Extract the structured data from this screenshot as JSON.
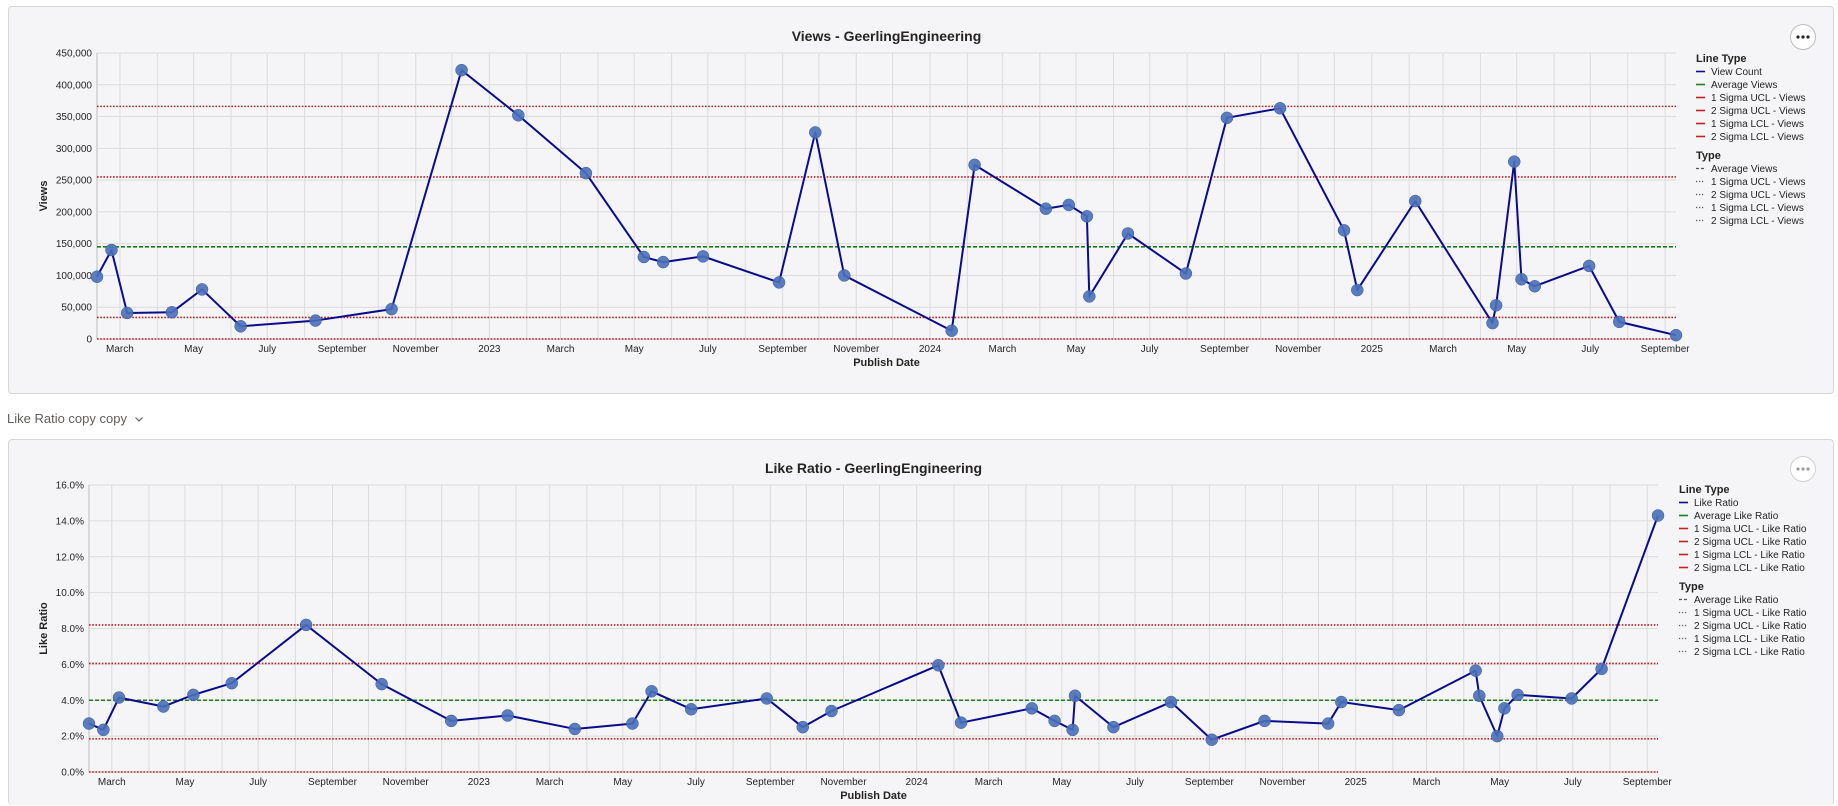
{
  "section_header": "Like Ratio copy copy",
  "colors": {
    "series": "#0b0b8c",
    "marker": "#4a70b8",
    "average": "#1b7f1b",
    "sigma": "#c42020",
    "grid": "#dcdcdc"
  },
  "icons": {
    "more": "more-options-icon",
    "chevron": "chevron-down-icon"
  },
  "views_legend": {
    "line_type_title": "Line Type",
    "line_type_items": [
      "View Count",
      "Average Views",
      "1 Sigma UCL - Views",
      "2 Sigma UCL - Views",
      "1 Sigma LCL - Views",
      "2 Sigma LCL - Views"
    ],
    "type_title": "Type",
    "type_items": [
      "Average Views",
      "1 Sigma UCL - Views",
      "2 Sigma UCL - Views",
      "1 Sigma LCL - Views",
      "2 Sigma LCL - Views"
    ]
  },
  "like_legend": {
    "line_type_title": "Line Type",
    "line_type_items": [
      "Like Ratio",
      "Average Like Ratio",
      "1 Sigma UCL - Like Ratio",
      "2 Sigma UCL - Like Ratio",
      "1 Sigma LCL - Like Ratio",
      "2 Sigma LCL - Like Ratio"
    ],
    "type_title": "Type",
    "type_items": [
      "Average Like Ratio",
      "1 Sigma UCL - Like Ratio",
      "2 Sigma UCL - Like Ratio",
      "1 Sigma LCL - Like Ratio",
      "2 Sigma LCL - Like Ratio"
    ]
  },
  "chart_data": [
    {
      "type": "line",
      "title": "Views - GeerlingEngineering",
      "xlabel": "Publish Date",
      "ylabel": "Views",
      "ylim": [
        0,
        450000
      ],
      "y_ticks": [
        "0",
        "50,000",
        "100,000",
        "150,000",
        "200,000",
        "250,000",
        "300,000",
        "350,000",
        "400,000",
        "450,000"
      ],
      "xlim": [
        "2022-02-10",
        "2025-09-10"
      ],
      "x_ticks": [
        {
          "date": "2022-03-01",
          "label": "March"
        },
        {
          "date": "2022-05-01",
          "label": "May"
        },
        {
          "date": "2022-07-01",
          "label": "July"
        },
        {
          "date": "2022-09-01",
          "label": "September"
        },
        {
          "date": "2022-11-01",
          "label": "November"
        },
        {
          "date": "2023-01-01",
          "label": "2023"
        },
        {
          "date": "2023-03-01",
          "label": "March"
        },
        {
          "date": "2023-05-01",
          "label": "May"
        },
        {
          "date": "2023-07-01",
          "label": "July"
        },
        {
          "date": "2023-09-01",
          "label": "September"
        },
        {
          "date": "2023-11-01",
          "label": "November"
        },
        {
          "date": "2024-01-01",
          "label": "2024"
        },
        {
          "date": "2024-03-01",
          "label": "March"
        },
        {
          "date": "2024-05-01",
          "label": "May"
        },
        {
          "date": "2024-07-01",
          "label": "July"
        },
        {
          "date": "2024-09-01",
          "label": "September"
        },
        {
          "date": "2024-11-01",
          "label": "November"
        },
        {
          "date": "2025-01-01",
          "label": "2025"
        },
        {
          "date": "2025-03-01",
          "label": "March"
        },
        {
          "date": "2025-05-01",
          "label": "May"
        },
        {
          "date": "2025-07-01",
          "label": "July"
        },
        {
          "date": "2025-09-01",
          "label": "September"
        }
      ],
      "reference_lines": [
        {
          "name": "Average Views",
          "value": 145000,
          "kind": "average"
        },
        {
          "name": "1 Sigma UCL - Views",
          "value": 255000,
          "kind": "sigma"
        },
        {
          "name": "2 Sigma UCL - Views",
          "value": 366000,
          "kind": "sigma"
        },
        {
          "name": "1 Sigma LCL - Views",
          "value": 34000,
          "kind": "sigma"
        },
        {
          "name": "2 Sigma LCL - Views",
          "value": 0,
          "kind": "sigma"
        }
      ],
      "series": [
        {
          "name": "View Count",
          "points": [
            [
              "2022-02-10",
              98000
            ],
            [
              "2022-02-22",
              140000
            ],
            [
              "2022-03-07",
              41000
            ],
            [
              "2022-04-13",
              42000
            ],
            [
              "2022-05-08",
              78000
            ],
            [
              "2022-06-09",
              20000
            ],
            [
              "2022-08-10",
              29000
            ],
            [
              "2022-10-12",
              47000
            ],
            [
              "2022-12-09",
              423000
            ],
            [
              "2023-01-25",
              352000
            ],
            [
              "2023-03-22",
              261000
            ],
            [
              "2023-05-09",
              129000
            ],
            [
              "2023-05-25",
              121000
            ],
            [
              "2023-06-27",
              130000
            ],
            [
              "2023-08-29",
              89000
            ],
            [
              "2023-09-28",
              325000
            ],
            [
              "2023-10-22",
              100000
            ],
            [
              "2024-01-19",
              13000
            ],
            [
              "2024-02-07",
              274000
            ],
            [
              "2024-04-06",
              205000
            ],
            [
              "2024-04-25",
              211000
            ],
            [
              "2024-05-10",
              193000
            ],
            [
              "2024-05-12",
              67000
            ],
            [
              "2024-06-13",
              166000
            ],
            [
              "2024-07-31",
              103000
            ],
            [
              "2024-09-03",
              348000
            ],
            [
              "2024-10-17",
              363000
            ],
            [
              "2024-12-09",
              171000
            ],
            [
              "2024-12-20",
              77000
            ],
            [
              "2025-02-06",
              217000
            ],
            [
              "2025-04-11",
              25000
            ],
            [
              "2025-04-14",
              53000
            ],
            [
              "2025-04-29",
              279000
            ],
            [
              "2025-05-05",
              94000
            ],
            [
              "2025-05-16",
              83000
            ],
            [
              "2025-06-30",
              115000
            ],
            [
              "2025-07-25",
              27000
            ],
            [
              "2025-09-10",
              6000
            ]
          ]
        }
      ]
    },
    {
      "type": "line",
      "title": "Like Ratio - GeerlingEngineering",
      "xlabel": "Publish Date",
      "ylabel": "Like Ratio",
      "ylim": [
        0,
        16
      ],
      "y_ticks": [
        "0.0%",
        "2.0%",
        "4.0%",
        "6.0%",
        "8.0%",
        "10.0%",
        "12.0%",
        "14.0%",
        "16.0%"
      ],
      "xlim": [
        "2022-02-10",
        "2025-09-10"
      ],
      "x_ticks": [
        {
          "date": "2022-03-01",
          "label": "March"
        },
        {
          "date": "2022-05-01",
          "label": "May"
        },
        {
          "date": "2022-07-01",
          "label": "July"
        },
        {
          "date": "2022-09-01",
          "label": "September"
        },
        {
          "date": "2022-11-01",
          "label": "November"
        },
        {
          "date": "2023-01-01",
          "label": "2023"
        },
        {
          "date": "2023-03-01",
          "label": "March"
        },
        {
          "date": "2023-05-01",
          "label": "May"
        },
        {
          "date": "2023-07-01",
          "label": "July"
        },
        {
          "date": "2023-09-01",
          "label": "September"
        },
        {
          "date": "2023-11-01",
          "label": "November"
        },
        {
          "date": "2024-01-01",
          "label": "2024"
        },
        {
          "date": "2024-03-01",
          "label": "March"
        },
        {
          "date": "2024-05-01",
          "label": "May"
        },
        {
          "date": "2024-07-01",
          "label": "July"
        },
        {
          "date": "2024-09-01",
          "label": "September"
        },
        {
          "date": "2024-11-01",
          "label": "November"
        },
        {
          "date": "2025-01-01",
          "label": "2025"
        },
        {
          "date": "2025-03-01",
          "label": "March"
        },
        {
          "date": "2025-05-01",
          "label": "May"
        },
        {
          "date": "2025-07-01",
          "label": "July"
        },
        {
          "date": "2025-09-01",
          "label": "September"
        }
      ],
      "reference_lines": [
        {
          "name": "Average Like Ratio",
          "value": 4.0,
          "kind": "average"
        },
        {
          "name": "1 Sigma UCL - Like Ratio",
          "value": 6.05,
          "kind": "sigma"
        },
        {
          "name": "2 Sigma UCL - Like Ratio",
          "value": 8.2,
          "kind": "sigma"
        },
        {
          "name": "1 Sigma LCL - Like Ratio",
          "value": 1.85,
          "kind": "sigma"
        },
        {
          "name": "2 Sigma LCL - Like Ratio",
          "value": 0,
          "kind": "sigma"
        }
      ],
      "series": [
        {
          "name": "Like Ratio",
          "points": [
            [
              "2022-02-10",
              2.7
            ],
            [
              "2022-02-22",
              2.35
            ],
            [
              "2022-03-07",
              4.15
            ],
            [
              "2022-04-13",
              3.65
            ],
            [
              "2022-05-08",
              4.3
            ],
            [
              "2022-06-09",
              4.95
            ],
            [
              "2022-08-10",
              8.2
            ],
            [
              "2022-10-12",
              4.9
            ],
            [
              "2022-12-09",
              2.85
            ],
            [
              "2023-01-25",
              3.15
            ],
            [
              "2023-03-22",
              2.4
            ],
            [
              "2023-05-09",
              2.7
            ],
            [
              "2023-05-25",
              4.5
            ],
            [
              "2023-06-27",
              3.5
            ],
            [
              "2023-08-29",
              4.1
            ],
            [
              "2023-09-28",
              2.5
            ],
            [
              "2023-10-22",
              3.4
            ],
            [
              "2024-01-19",
              5.95
            ],
            [
              "2024-02-07",
              2.75
            ],
            [
              "2024-04-06",
              3.55
            ],
            [
              "2024-04-25",
              2.85
            ],
            [
              "2024-05-10",
              2.35
            ],
            [
              "2024-05-12",
              4.25
            ],
            [
              "2024-06-13",
              2.5
            ],
            [
              "2024-07-31",
              3.9
            ],
            [
              "2024-09-03",
              1.8
            ],
            [
              "2024-10-17",
              2.85
            ],
            [
              "2024-12-09",
              2.7
            ],
            [
              "2024-12-20",
              3.9
            ],
            [
              "2025-02-06",
              3.45
            ],
            [
              "2025-04-11",
              5.65
            ],
            [
              "2025-04-14",
              4.25
            ],
            [
              "2025-04-29",
              2.0
            ],
            [
              "2025-05-05",
              3.55
            ],
            [
              "2025-05-16",
              4.3
            ],
            [
              "2025-06-30",
              4.1
            ],
            [
              "2025-07-25",
              5.75
            ],
            [
              "2025-09-10",
              14.3
            ]
          ]
        }
      ]
    }
  ]
}
